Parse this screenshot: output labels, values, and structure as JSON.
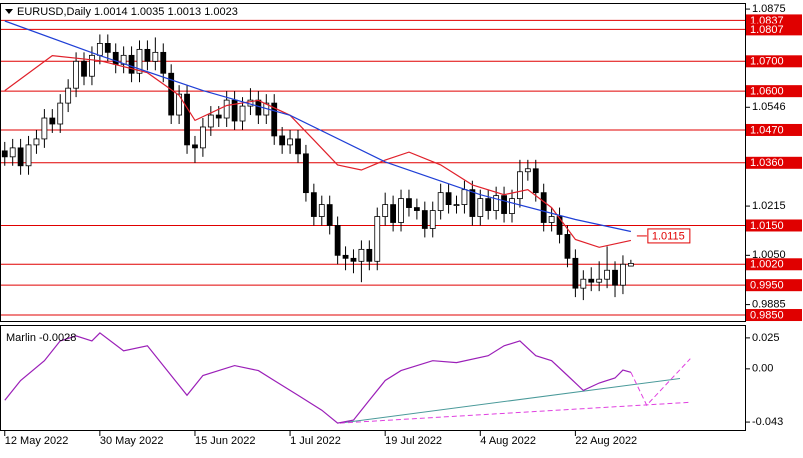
{
  "chart_data": [
    {
      "type": "candlestick",
      "title": "EURUSD,Daily",
      "xlim": [
        -0.6,
        93.4
      ],
      "xticks": [
        {
          "value": 0,
          "label": "12 May 2022"
        },
        {
          "value": 12,
          "label": "30 May 2022"
        },
        {
          "value": 24,
          "label": "15 Jun 2022"
        },
        {
          "value": 36,
          "label": "1 Jul 2022"
        },
        {
          "value": 48,
          "label": "19 Jul 2022"
        },
        {
          "value": 60,
          "label": "4 Aug 2022"
        },
        {
          "value": 72,
          "label": "22 Aug 2022"
        }
      ],
      "ylim": [
        0.983,
        1.0892
      ],
      "yticks": [
        1.0875,
        1.0546,
        1.0215,
        {
          "value": 1.005,
          "label": "1.0050"
        },
        0.9885
      ],
      "open": [
        1.04,
        1.038,
        1.041,
        1.035,
        1.042,
        1.044,
        1.051,
        1.049,
        1.056,
        1.061,
        1.07,
        1.065,
        1.072,
        1.076,
        1.073,
        1.069,
        1.072,
        1.066,
        1.074,
        1.07,
        1.073,
        1.066,
        1.052,
        1.059,
        1.042,
        1.041,
        1.048,
        1.052,
        1.051,
        1.057,
        1.05,
        1.055,
        1.057,
        1.052,
        1.056,
        1.045,
        1.042,
        1.044,
        1.039,
        1.026,
        1.018,
        1.022,
        1.015,
        1.005,
        1.004,
        1.003,
        1.007,
        1.003,
        1.018,
        1.022,
        1.016,
        1.024,
        1.021,
        1.02,
        1.014,
        1.02,
        1.026,
        1.022,
        1.022,
        1.027,
        1.018,
        1.024,
        1.02,
        1.025,
        1.019,
        1.024,
        1.033,
        1.034,
        1.026,
        1.016,
        1.018,
        1.012,
        1.004,
        0.994,
        0.997,
        0.996,
        0.997,
        1.0,
        0.995,
        1.0014
      ],
      "high": [
        1.043,
        1.044,
        1.044,
        1.045,
        1.047,
        1.054,
        1.054,
        1.059,
        1.064,
        1.073,
        1.073,
        1.075,
        1.079,
        1.079,
        1.076,
        1.075,
        1.075,
        1.077,
        1.077,
        1.078,
        1.076,
        1.069,
        1.062,
        1.062,
        1.045,
        1.051,
        1.055,
        1.055,
        1.06,
        1.06,
        1.058,
        1.061,
        1.06,
        1.059,
        1.059,
        1.048,
        1.047,
        1.047,
        1.042,
        1.029,
        1.025,
        1.025,
        1.018,
        1.008,
        1.007,
        1.01,
        1.01,
        1.021,
        1.026,
        1.025,
        1.027,
        1.027,
        1.024,
        1.023,
        1.023,
        1.029,
        1.029,
        1.025,
        1.03,
        1.03,
        1.027,
        1.027,
        1.028,
        1.028,
        1.027,
        1.037,
        1.037,
        1.037,
        1.029,
        1.021,
        1.021,
        1.015,
        1.007,
        1.0,
        1.001,
        1.003,
        1.008,
        1.003,
        1.005,
        1.0035
      ],
      "low": [
        1.035,
        1.035,
        1.032,
        1.032,
        1.039,
        1.041,
        1.046,
        1.046,
        1.053,
        1.058,
        1.062,
        1.062,
        1.069,
        1.07,
        1.066,
        1.066,
        1.063,
        1.063,
        1.067,
        1.067,
        1.063,
        1.049,
        1.049,
        1.039,
        1.036,
        1.038,
        1.045,
        1.048,
        1.048,
        1.047,
        1.047,
        1.052,
        1.049,
        1.049,
        1.042,
        1.039,
        1.039,
        1.036,
        1.023,
        1.015,
        1.015,
        1.012,
        1.002,
        1.0,
        0.999,
        0.996,
        1.0,
        1.0,
        1.015,
        1.013,
        1.013,
        1.018,
        1.017,
        1.011,
        1.011,
        1.017,
        1.019,
        1.019,
        1.019,
        1.015,
        1.015,
        1.017,
        1.017,
        1.016,
        1.016,
        1.021,
        1.03,
        1.023,
        1.013,
        1.013,
        1.009,
        1.001,
        0.991,
        0.99,
        0.993,
        0.993,
        0.994,
        0.991,
        0.992,
        1.0013
      ],
      "close": [
        1.038,
        1.041,
        1.035,
        1.042,
        1.044,
        1.051,
        1.049,
        1.056,
        1.061,
        1.07,
        1.065,
        1.072,
        1.076,
        1.073,
        1.069,
        1.072,
        1.066,
        1.074,
        1.07,
        1.073,
        1.066,
        1.052,
        1.059,
        1.042,
        1.041,
        1.048,
        1.052,
        1.051,
        1.057,
        1.05,
        1.055,
        1.057,
        1.052,
        1.056,
        1.045,
        1.042,
        1.044,
        1.039,
        1.026,
        1.018,
        1.022,
        1.015,
        1.005,
        1.004,
        1.003,
        1.007,
        1.003,
        1.018,
        1.022,
        1.016,
        1.024,
        1.021,
        1.02,
        1.014,
        1.02,
        1.026,
        1.022,
        1.022,
        1.027,
        1.018,
        1.024,
        1.02,
        1.025,
        1.019,
        1.024,
        1.033,
        1.034,
        1.026,
        1.016,
        1.018,
        1.012,
        1.004,
        0.994,
        0.997,
        0.996,
        0.997,
        1.0,
        0.995,
        1.002,
        1.0023
      ],
      "series": [
        {
          "color": "#e0202a",
          "x": [
            0,
            6,
            12,
            18,
            22,
            24,
            28,
            32,
            36,
            39,
            42,
            45,
            48,
            51,
            55,
            59,
            63,
            66,
            69,
            72,
            75,
            79
          ],
          "values": [
            1.0602,
            1.0719,
            1.0702,
            1.0662,
            1.0586,
            1.0502,
            1.0552,
            1.0569,
            1.0519,
            1.0436,
            1.0353,
            1.0336,
            1.0369,
            1.0396,
            1.0353,
            1.0286,
            1.0253,
            1.027,
            1.021,
            1.0103,
            1.0077,
            1.01
          ]
        },
        {
          "color": "#1f3fd6",
          "x": [
            0,
            12,
            25,
            36,
            48,
            60,
            72,
            79
          ],
          "values": [
            1.0835,
            1.0719,
            1.0602,
            1.0519,
            1.0363,
            1.0253,
            1.017,
            1.013
          ]
        }
      ],
      "levels": [
        1.0837,
        1.0807,
        {
          "value": 1.07,
          "label": "1.0700"
        },
        {
          "value": 1.06,
          "label": "1.0600"
        },
        {
          "value": 1.047,
          "label": "1.0470"
        },
        {
          "value": 1.036,
          "label": "1.0360"
        },
        {
          "value": 1.015,
          "label": "1.0150"
        },
        {
          "value": 1.002,
          "label": "1.0020"
        },
        {
          "value": 0.995,
          "label": "0.9950"
        },
        {
          "value": 0.985,
          "label": "0.9850"
        }
      ],
      "level_color": "#e00000",
      "marker": 1.0115
    },
    {
      "type": "line",
      "title": "Marlin",
      "xlim": [
        -0.6,
        93.4
      ],
      "ylim": [
        -0.0494,
        0.0346
      ],
      "yticks": [
        0.025,
        {
          "value": 0,
          "label": "0.00"
        },
        -0.043
      ],
      "color": "#9b1fb8",
      "x": [
        0,
        2,
        5,
        7,
        9,
        11,
        12,
        15,
        18,
        22,
        23,
        25,
        27,
        29,
        32,
        34,
        37,
        40,
        42,
        44,
        46,
        48,
        50,
        54,
        57,
        61,
        63,
        65,
        67,
        69,
        71,
        73,
        75,
        77,
        78,
        79
      ],
      "values": [
        -0.0254,
        -0.0094,
        0.0066,
        0.0226,
        0.0266,
        0.0226,
        0.029,
        0.0146,
        0.0186,
        -0.0134,
        -0.0214,
        -0.0054,
        -0.0014,
        0.0026,
        -0.0014,
        -0.0094,
        -0.0214,
        -0.0334,
        -0.0438,
        -0.0414,
        -0.0254,
        -0.0094,
        -0.0014,
        0.0066,
        0.005,
        0.0106,
        0.0186,
        0.0226,
        0.0106,
        0.0066,
        -0.0054,
        -0.0174,
        -0.0114,
        -0.0074,
        -0.001,
        -0.0028
      ],
      "lines": [
        {
          "color": "#4a9a9a",
          "dash": false,
          "x": [
            42.3,
            85.2
          ],
          "values": [
            -0.0438,
            -0.0078
          ]
        },
        {
          "color": "#e040e0",
          "dash": true,
          "x": [
            42.3,
            86.5
          ],
          "values": [
            -0.0438,
            -0.027
          ]
        },
        {
          "color": "#e040e0",
          "dash": true,
          "x": [
            79,
            81,
            86.5
          ],
          "values": [
            -0.0028,
            -0.0294,
            0.0082
          ]
        }
      ]
    }
  ]
}
